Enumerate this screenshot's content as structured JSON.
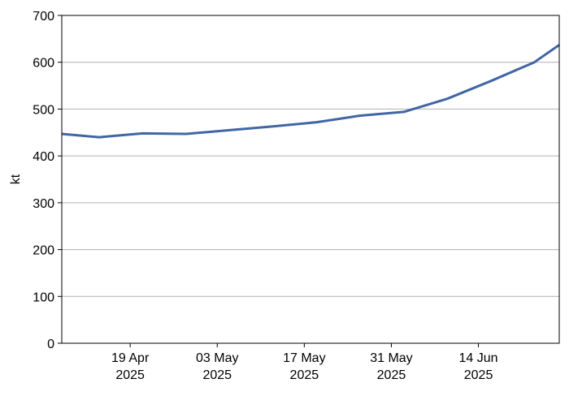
{
  "chart_data": {
    "type": "line",
    "title": "",
    "xlabel": "",
    "ylabel": "kt",
    "ylim": [
      0,
      700
    ],
    "xlim": [
      "2025-04-08",
      "2025-06-27"
    ],
    "grid": {
      "y": true,
      "x": false
    },
    "legend": "none",
    "y_ticks": [
      "0",
      "100",
      "200",
      "300",
      "400",
      "500",
      "600",
      "700"
    ],
    "x_ticks": [
      {
        "date": "2025-04-19",
        "label_line1": "19 Apr",
        "label_line2": "2025"
      },
      {
        "date": "2025-05-03",
        "label_line1": "03 May",
        "label_line2": "2025"
      },
      {
        "date": "2025-05-17",
        "label_line1": "17 May",
        "label_line2": "2025"
      },
      {
        "date": "2025-05-31",
        "label_line1": "31 May",
        "label_line2": "2025"
      },
      {
        "date": "2025-06-14",
        "label_line1": "14 Jun",
        "label_line2": "2025"
      }
    ],
    "series": [
      {
        "color": "#4166a4",
        "points": [
          {
            "x": "2025-04-08",
            "y": 447
          },
          {
            "x": "2025-04-14",
            "y": 440
          },
          {
            "x": "2025-04-21",
            "y": 448
          },
          {
            "x": "2025-04-28",
            "y": 447
          },
          {
            "x": "2025-05-05",
            "y": 455
          },
          {
            "x": "2025-05-12",
            "y": 463
          },
          {
            "x": "2025-05-19",
            "y": 472
          },
          {
            "x": "2025-05-26",
            "y": 486
          },
          {
            "x": "2025-06-02",
            "y": 494
          },
          {
            "x": "2025-06-09",
            "y": 522
          },
          {
            "x": "2025-06-16",
            "y": 560
          },
          {
            "x": "2025-06-23",
            "y": 600
          },
          {
            "x": "2025-06-27",
            "y": 637
          }
        ]
      }
    ]
  },
  "colors": {
    "line": "#4166a4",
    "grid": "#b0b0b0",
    "axis": "#000000"
  }
}
